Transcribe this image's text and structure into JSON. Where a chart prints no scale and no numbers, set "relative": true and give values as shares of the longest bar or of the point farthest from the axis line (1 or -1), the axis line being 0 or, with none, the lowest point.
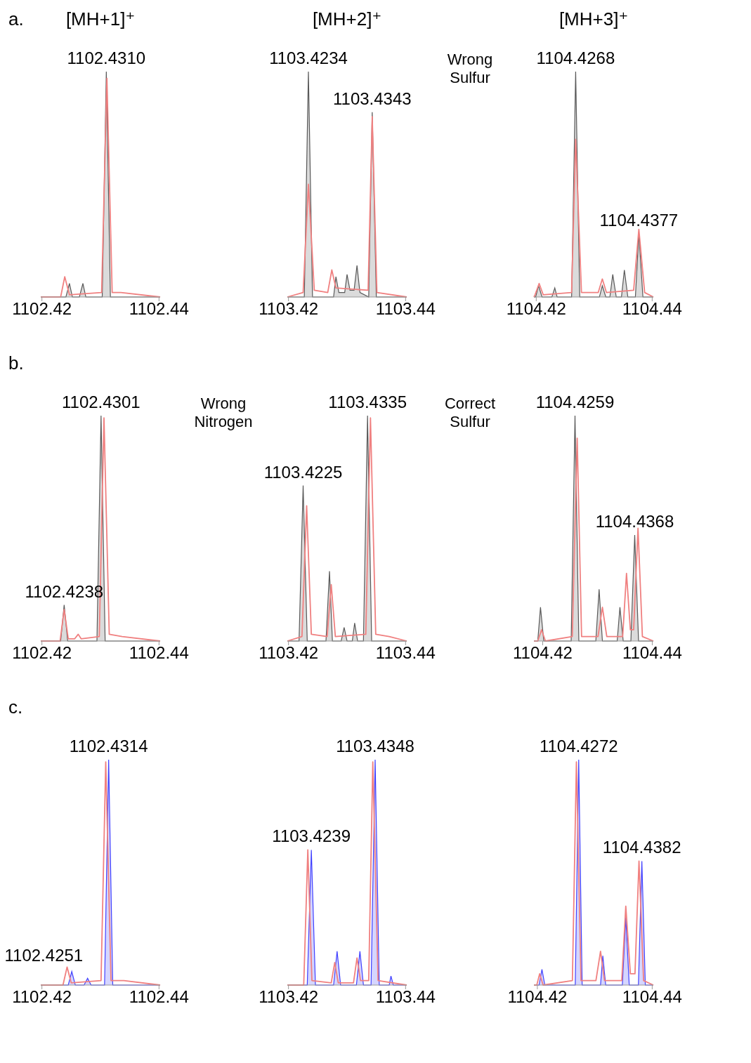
{
  "chart_data": [
    {
      "type": "area",
      "title": "[MH+1]⁺",
      "subtitle": "a.",
      "relative": true,
      "xlim": [
        1102.4198,
        1102.4402
      ],
      "xticks": [
        1102.42,
        1102.44
      ],
      "series": [
        {
          "color": "#595959",
          "x": [
            1102.4198,
            1102.4241,
            1102.4247,
            1102.4252,
            1102.4264,
            1102.427,
            1102.4275,
            1102.4303,
            1102.431,
            1102.4317,
            1102.4402
          ],
          "values": [
            0,
            0,
            0.06,
            0,
            0,
            0.06,
            0,
            0,
            1,
            0,
            0
          ]
        },
        {
          "type": "line",
          "color": "#f08080",
          "x": [
            1102.4198,
            1102.4232,
            1102.4239,
            1102.4247,
            1102.4302,
            1102.4311,
            1102.432,
            1102.4335,
            1102.4402
          ],
          "values": [
            0,
            0,
            0.09,
            0.01,
            0.02,
            0.97,
            0.02,
            0.02,
            0
          ]
        }
      ],
      "annotations": [
        {
          "text": "1102.4310",
          "x": 1102.431,
          "y": 1
        }
      ]
    },
    {
      "type": "area",
      "title": "[MH+2]⁺",
      "relative": true,
      "xlim": [
        1103.4198,
        1103.4402
      ],
      "xticks": [
        1103.42,
        1103.44
      ],
      "series": [
        {
          "color": "#595959",
          "x": [
            1103.4198,
            1103.4227,
            1103.4234,
            1103.4241,
            1103.4277,
            1103.4281,
            1103.4286,
            1103.4296,
            1103.43,
            1103.4305,
            1103.4312,
            1103.4317,
            1103.4322,
            1103.4337,
            1103.4343,
            1103.435,
            1103.4402
          ],
          "values": [
            0,
            0,
            1,
            0,
            0,
            0.09,
            0.02,
            0.02,
            0.1,
            0.03,
            0.03,
            0.14,
            0.02,
            0,
            0.82,
            0,
            0
          ]
        },
        {
          "type": "line",
          "color": "#f08080",
          "x": [
            1103.4198,
            1103.4225,
            1103.4234,
            1103.4244,
            1103.4267,
            1103.4274,
            1103.4281,
            1103.4336,
            1103.4343,
            1103.4351,
            1103.4402
          ],
          "values": [
            0,
            0.02,
            0.5,
            0.03,
            0.02,
            0.12,
            0.04,
            0.03,
            0.8,
            0.02,
            0
          ]
        }
      ],
      "annotations": [
        {
          "text": "1103.4234",
          "x": 1103.4234,
          "y": 1
        },
        {
          "text": "1103.4343",
          "x": 1103.4343,
          "y": 0.82
        },
        "Wrong Sulfur"
      ]
    },
    {
      "type": "area",
      "title": "[MH+3]⁺",
      "relative": true,
      "xlim": [
        1104.4196,
        1104.4402
      ],
      "xticks": [
        1104.42,
        1104.44
      ],
      "series": [
        {
          "color": "#595959",
          "x": [
            1104.4196,
            1104.4199,
            1104.4204,
            1104.421,
            1104.4227,
            1104.4232,
            1104.4236,
            1104.4261,
            1104.4268,
            1104.4275,
            1104.4309,
            1104.4314,
            1104.432,
            1104.4327,
            1104.4332,
            1104.4338,
            1104.4347,
            1104.4352,
            1104.4358,
            1104.4371,
            1104.4377,
            1104.4384,
            1104.4402
          ],
          "values": [
            0,
            0,
            0.05,
            0,
            0,
            0.04,
            0,
            0,
            1,
            0,
            0,
            0.05,
            0,
            0,
            0.1,
            0,
            0,
            0.12,
            0,
            0,
            0.28,
            0,
            0
          ]
        },
        {
          "type": "line",
          "color": "#f08080",
          "x": [
            1104.4196,
            1104.4198,
            1104.4205,
            1104.4212,
            1104.4261,
            1104.4268,
            1104.4278,
            1104.4307,
            1104.4314,
            1104.4321,
            1104.4368,
            1104.4377,
            1104.4387,
            1104.4402
          ],
          "values": [
            0,
            0.01,
            0.06,
            0.01,
            0.02,
            0.7,
            0.02,
            0.02,
            0.08,
            0.02,
            0.03,
            0.3,
            0.02,
            0
          ]
        }
      ],
      "annotations": [
        {
          "text": "1104.4268",
          "x": 1104.4268,
          "y": 1
        },
        {
          "text": "1104.4377",
          "x": 1104.4377,
          "y": 0.28
        }
      ]
    },
    {
      "type": "area",
      "subtitle": "b.",
      "relative": true,
      "xlim": [
        1102.4198,
        1102.4402
      ],
      "xticks": [
        1102.42,
        1102.44
      ],
      "series": [
        {
          "color": "#595959",
          "x": [
            1102.4198,
            1102.4232,
            1102.4238,
            1102.4244,
            1102.4294,
            1102.4301,
            1102.4308,
            1102.4402
          ],
          "values": [
            0,
            0,
            0.16,
            0,
            0,
            1,
            0,
            0
          ]
        },
        {
          "type": "line",
          "color": "#f08080",
          "x": [
            1102.4198,
            1102.4231,
            1102.4238,
            1102.4245,
            1102.4256,
            1102.4262,
            1102.4267,
            1102.4298,
            1102.4306,
            1102.4315,
            1102.4337,
            1102.4402
          ],
          "values": [
            0,
            0,
            0.14,
            0.01,
            0.01,
            0.03,
            0.01,
            0.02,
            0.99,
            0.03,
            0.02,
            0
          ]
        }
      ],
      "annotations": [
        {
          "text": "1102.4238",
          "x": 1102.4238,
          "y": 0.16
        },
        {
          "text": "1102.4301",
          "x": 1102.4301,
          "y": 1
        },
        "Wrong Nitrogen"
      ]
    },
    {
      "type": "area",
      "relative": true,
      "xlim": [
        1103.4198,
        1103.4402
      ],
      "xticks": [
        1103.42,
        1103.44
      ],
      "series": [
        {
          "color": "#595959",
          "x": [
            1103.4198,
            1103.4218,
            1103.4225,
            1103.4232,
            1103.4264,
            1103.427,
            1103.4275,
            1103.429,
            1103.4295,
            1103.43,
            1103.4309,
            1103.4313,
            1103.4318,
            1103.4328,
            1103.4335,
            1103.4342,
            1103.4402
          ],
          "values": [
            0,
            0,
            0.69,
            0,
            0,
            0.31,
            0,
            0,
            0.06,
            0,
            0,
            0.08,
            0,
            0,
            1,
            0,
            0
          ]
        },
        {
          "type": "line",
          "color": "#f08080",
          "x": [
            1103.4198,
            1103.4223,
            1103.4231,
            1103.4239,
            1103.4266,
            1103.4273,
            1103.428,
            1103.4332,
            1103.434,
            1103.4349,
            1103.4372,
            1103.4402
          ],
          "values": [
            0,
            0.02,
            0.6,
            0.03,
            0.02,
            0.25,
            0.02,
            0.03,
            0.99,
            0.03,
            0.02,
            0
          ]
        }
      ],
      "annotations": [
        {
          "text": "1103.4225",
          "x": 1103.4225,
          "y": 0.69
        },
        {
          "text": "1103.4335",
          "x": 1103.4335,
          "y": 1
        },
        "Correct Sulfur"
      ]
    },
    {
      "type": "area",
      "relative": true,
      "xlim": [
        1104.4184,
        1104.4402
      ],
      "xticks": [
        1104.42,
        1104.44
      ],
      "series": [
        {
          "color": "#595959",
          "x": [
            1104.4184,
            1104.4191,
            1104.4196,
            1104.4202,
            1104.4252,
            1104.4259,
            1104.4266,
            1104.4297,
            1104.4303,
            1104.4309,
            1104.4336,
            1104.4341,
            1104.4347,
            1104.4361,
            1104.4368,
            1104.4375,
            1104.4402
          ],
          "values": [
            0,
            0,
            0.15,
            0,
            0,
            1,
            0,
            0,
            0.23,
            0,
            0,
            0.15,
            0,
            0,
            0.47,
            0,
            0
          ]
        },
        {
          "type": "line",
          "color": "#f08080",
          "x": [
            1104.4184,
            1104.4191,
            1104.4198,
            1104.4205,
            1104.4254,
            1104.4263,
            1104.4271,
            1104.4301,
            1104.4309,
            1104.4317,
            1104.4346,
            1104.4353,
            1104.436,
            1104.4366,
            1104.4374,
            1104.4382,
            1104.4402
          ],
          "values": [
            0,
            0,
            0.05,
            0,
            0.02,
            0.9,
            0.02,
            0.02,
            0.15,
            0.02,
            0.02,
            0.3,
            0.05,
            0.05,
            0.5,
            0.02,
            0
          ]
        }
      ],
      "annotations": [
        {
          "text": "1104.4259",
          "x": 1104.4259,
          "y": 1
        },
        {
          "text": "1104.4368",
          "x": 1104.4368,
          "y": 0.47
        }
      ]
    },
    {
      "type": "area",
      "subtitle": "c.",
      "relative": true,
      "xlim": [
        1102.4198,
        1102.4402
      ],
      "xticks": [
        1102.42,
        1102.44
      ],
      "series": [
        {
          "color": "#4040ff",
          "x": [
            1102.4198,
            1102.4245,
            1102.4251,
            1102.4257,
            1102.4272,
            1102.4278,
            1102.4284,
            1102.4307,
            1102.4314,
            1102.4321,
            1102.4402
          ],
          "values": [
            0,
            0,
            0.06,
            0,
            0,
            0.03,
            0,
            0,
            1,
            0,
            0
          ]
        },
        {
          "type": "line",
          "color": "#f08080",
          "x": [
            1102.4198,
            1102.4236,
            1102.4243,
            1102.425,
            1102.4301,
            1102.4309,
            1102.4318,
            1102.434,
            1102.4402
          ],
          "values": [
            0,
            0,
            0.08,
            0.01,
            0.02,
            0.99,
            0.02,
            0.02,
            0
          ]
        }
      ],
      "annotations": [
        {
          "text": "1102.4314",
          "x": 1102.4314,
          "y": 1
        },
        {
          "text": "1102.4251",
          "x": 1102.4251,
          "y": 0.06
        }
      ]
    },
    {
      "type": "area",
      "relative": true,
      "xlim": [
        1103.4198,
        1103.4402
      ],
      "xticks": [
        1103.42,
        1103.44
      ],
      "series": [
        {
          "color": "#4040ff",
          "x": [
            1103.4198,
            1103.4232,
            1103.4239,
            1103.4246,
            1103.4277,
            1103.4283,
            1103.4289,
            1103.4316,
            1103.4322,
            1103.4328,
            1103.4341,
            1103.4348,
            1103.4355,
            1103.4372,
            1103.4375,
            1103.4379,
            1103.4402
          ],
          "values": [
            0,
            0,
            0.6,
            0,
            0,
            0.15,
            0,
            0,
            0.15,
            0,
            0,
            1,
            0,
            0,
            0.04,
            0,
            0
          ]
        },
        {
          "type": "line",
          "color": "#f08080",
          "x": [
            1103.4198,
            1103.4226,
            1103.4233,
            1103.424,
            1103.4273,
            1103.4279,
            1103.4285,
            1103.4311,
            1103.4317,
            1103.4323,
            1103.4337,
            1103.4344,
            1103.4353,
            1103.4402
          ],
          "values": [
            0,
            0,
            0.6,
            0.02,
            0.01,
            0.1,
            0.01,
            0.01,
            0.12,
            0.02,
            0.02,
            0.99,
            0.02,
            0
          ]
        }
      ],
      "annotations": [
        {
          "text": "1103.4239",
          "x": 1103.4239,
          "y": 0.6
        },
        {
          "text": "1103.4348",
          "x": 1103.4348,
          "y": 1
        }
      ]
    },
    {
      "type": "area",
      "relative": true,
      "xlim": [
        1104.4194,
        1104.4402
      ],
      "xticks": [
        1104.42,
        1104.44
      ],
      "series": [
        {
          "color": "#4040ff",
          "x": [
            1104.4194,
            1104.4203,
            1104.4208,
            1104.4213,
            1104.4266,
            1104.4272,
            1104.4278,
            1104.431,
            1104.4314,
            1104.4319,
            1104.4348,
            1104.4354,
            1104.436,
            1104.4376,
            1104.4382,
            1104.4388,
            1104.4402
          ],
          "values": [
            0,
            0,
            0.07,
            0,
            0,
            1,
            0,
            0,
            0.13,
            0,
            0,
            0.3,
            0,
            0,
            0.55,
            0,
            0
          ]
        },
        {
          "type": "line",
          "color": "#f08080",
          "x": [
            1104.4194,
            1104.4199,
            1104.4204,
            1104.421,
            1104.4261,
            1104.4268,
            1104.4276,
            1104.4302,
            1104.431,
            1104.4317,
            1104.4347,
            1104.4354,
            1104.4362,
            1104.437,
            1104.4377,
            1104.4385,
            1104.4402
          ],
          "values": [
            0,
            0,
            0.05,
            0,
            0.02,
            0.99,
            0.02,
            0.02,
            0.15,
            0.02,
            0.02,
            0.35,
            0.05,
            0.05,
            0.55,
            0.02,
            0
          ]
        }
      ],
      "annotations": [
        {
          "text": "1104.4272",
          "x": 1104.4272,
          "y": 1
        },
        {
          "text": "1104.4382",
          "x": 1104.4382,
          "y": 0.55
        }
      ]
    }
  ]
}
